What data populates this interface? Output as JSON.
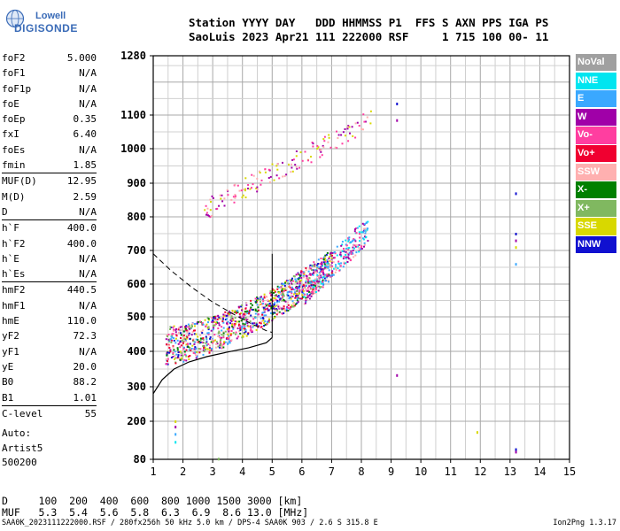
{
  "logo": {
    "line1": "Lowell",
    "line2": "DIGISONDE"
  },
  "header": {
    "line1": "Station YYYY DAY   DDD HHMMSS P1  FFS S AXN PPS IGA PS",
    "line2": "SaoLuis 2023 Apr21 111 222000 RSF     1 715 100 00- 11"
  },
  "params": [
    {
      "name": "foF2",
      "value": "5.000"
    },
    {
      "name": "foF1",
      "value": "N/A"
    },
    {
      "name": "foF1p",
      "value": "N/A"
    },
    {
      "name": "foE",
      "value": "N/A"
    },
    {
      "name": "foEp",
      "value": "0.35"
    },
    {
      "name": "fxI",
      "value": "6.40"
    },
    {
      "name": "foEs",
      "value": "N/A"
    },
    {
      "name": "fmin",
      "value": "1.85"
    },
    {
      "name": "MUF(D)",
      "value": "12.95"
    },
    {
      "name": "M(D)",
      "value": "2.59"
    },
    {
      "name": "D",
      "value": "N/A"
    },
    {
      "name": "h`F",
      "value": "400.0"
    },
    {
      "name": "h`F2",
      "value": "400.0"
    },
    {
      "name": "h`E",
      "value": "N/A"
    },
    {
      "name": "h`Es",
      "value": "N/A"
    },
    {
      "name": "hmF2",
      "value": "440.5"
    },
    {
      "name": "hmF1",
      "value": "N/A"
    },
    {
      "name": "hmE",
      "value": "110.0"
    },
    {
      "name": "yF2",
      "value": "72.3"
    },
    {
      "name": "yF1",
      "value": "N/A"
    },
    {
      "name": "yE",
      "value": "20.0"
    },
    {
      "name": "B0",
      "value": "88.2"
    },
    {
      "name": "B1",
      "value": "1.01"
    },
    {
      "name": "C-level",
      "value": "55"
    }
  ],
  "notes": {
    "line1": "Auto:",
    "line2": "Artist5",
    "line3": "500200"
  },
  "legend": [
    {
      "label": "NoVal",
      "color": "#a0a0a0"
    },
    {
      "label": "NNE",
      "color": "#00e5f0"
    },
    {
      "label": "E",
      "color": "#3aa8ff"
    },
    {
      "label": "W",
      "color": "#a000a8"
    },
    {
      "label": "Vo-",
      "color": "#ff3ea0"
    },
    {
      "label": "Vo+",
      "color": "#f00030"
    },
    {
      "label": "SSW",
      "color": "#ffb0b0"
    },
    {
      "label": "X-",
      "color": "#008000"
    },
    {
      "label": "X+",
      "color": "#80b860"
    },
    {
      "label": "SSE",
      "color": "#d8d800"
    },
    {
      "label": "NNW",
      "color": "#1010d0"
    }
  ],
  "muf_table": {
    "line1": "D     100  200  400  600  800 1000 1500 3000 [km]",
    "line2": "MUF   5.3  5.4  5.6  5.8  6.3  6.9  8.6 13.0 [MHz]"
  },
  "footer": {
    "left": "SAA0K_2023111222000.RSF / 280fx256h 50 kHz 5.0 km / DPS-4 SAA0K 903 / 2.6 S 315.8 E",
    "right": "Ion2Png 1.3.17"
  },
  "chart_data": {
    "type": "scatter",
    "xlim": [
      1,
      15
    ],
    "ylim": [
      80,
      1280
    ],
    "x_ticks": [
      1,
      2,
      3,
      4,
      5,
      6,
      7,
      8,
      9,
      10,
      11,
      12,
      13,
      14,
      15
    ],
    "y_ticks": [
      80,
      200,
      300,
      400,
      500,
      600,
      700,
      800,
      900,
      1000,
      1100,
      1280
    ],
    "grid": true,
    "profile_curve": {
      "x": [
        1.0,
        1.3,
        1.7,
        2.2,
        2.8,
        3.5,
        4.2,
        4.8,
        5.0
      ],
      "y": [
        280,
        320,
        350,
        370,
        385,
        398,
        410,
        425,
        440
      ]
    },
    "dashed_trace": {
      "x": [
        1.0,
        1.6,
        2.3,
        3.0,
        3.7,
        4.3,
        4.8,
        5.0
      ],
      "y": [
        690,
        640,
        590,
        545,
        508,
        480,
        460,
        455
      ]
    },
    "echo_bands": [
      {
        "name": "F2 o-trace",
        "x_from": 1.4,
        "x_to": 7.0,
        "y_from": 415,
        "y_to": 660,
        "colors": [
          "#a000a8",
          "#ff3ea0",
          "#f00030",
          "#ffb0b0",
          "#1010d0",
          "#008000",
          "#d8d800",
          "#80b860",
          "#3aa8ff"
        ]
      },
      {
        "name": "F2 x-trace",
        "x_from": 6.0,
        "x_to": 8.2,
        "y_from": 570,
        "y_to": 760,
        "colors": [
          "#a000a8",
          "#ff3ea0",
          "#ffb0b0",
          "#00e5f0",
          "#3aa8ff"
        ]
      },
      {
        "name": "2F multihop",
        "x_from": 2.7,
        "x_to": 8.3,
        "y_from": 820,
        "y_to": 1085,
        "colors": [
          "#a000a8",
          "#ff3ea0",
          "#ffb0b0",
          "#d8d800"
        ]
      }
    ],
    "isolated_points": [
      {
        "x": 9.2,
        "y": 1135,
        "color": "#1010d0"
      },
      {
        "x": 9.2,
        "y": 1085,
        "color": "#a000a8"
      },
      {
        "x": 9.2,
        "y": 333,
        "color": "#a000a8"
      },
      {
        "x": 13.2,
        "y": 870,
        "color": "#1010d0"
      },
      {
        "x": 13.2,
        "y": 750,
        "color": "#1010d0"
      },
      {
        "x": 13.2,
        "y": 730,
        "color": "#a000a8"
      },
      {
        "x": 13.2,
        "y": 710,
        "color": "#d8d800"
      },
      {
        "x": 13.2,
        "y": 660,
        "color": "#3aa8ff"
      },
      {
        "x": 13.2,
        "y": 112,
        "color": "#1010d0"
      },
      {
        "x": 13.2,
        "y": 104,
        "color": "#a000a8"
      },
      {
        "x": 1.75,
        "y": 200,
        "color": "#d8d800"
      },
      {
        "x": 1.75,
        "y": 183,
        "color": "#a000a8"
      },
      {
        "x": 1.75,
        "y": 160,
        "color": "#3aa8ff"
      },
      {
        "x": 1.75,
        "y": 135,
        "color": "#00e5f0"
      },
      {
        "x": 11.9,
        "y": 166,
        "color": "#d8d800"
      },
      {
        "x": 3.2,
        "y": 82,
        "color": "#80b860"
      }
    ]
  }
}
